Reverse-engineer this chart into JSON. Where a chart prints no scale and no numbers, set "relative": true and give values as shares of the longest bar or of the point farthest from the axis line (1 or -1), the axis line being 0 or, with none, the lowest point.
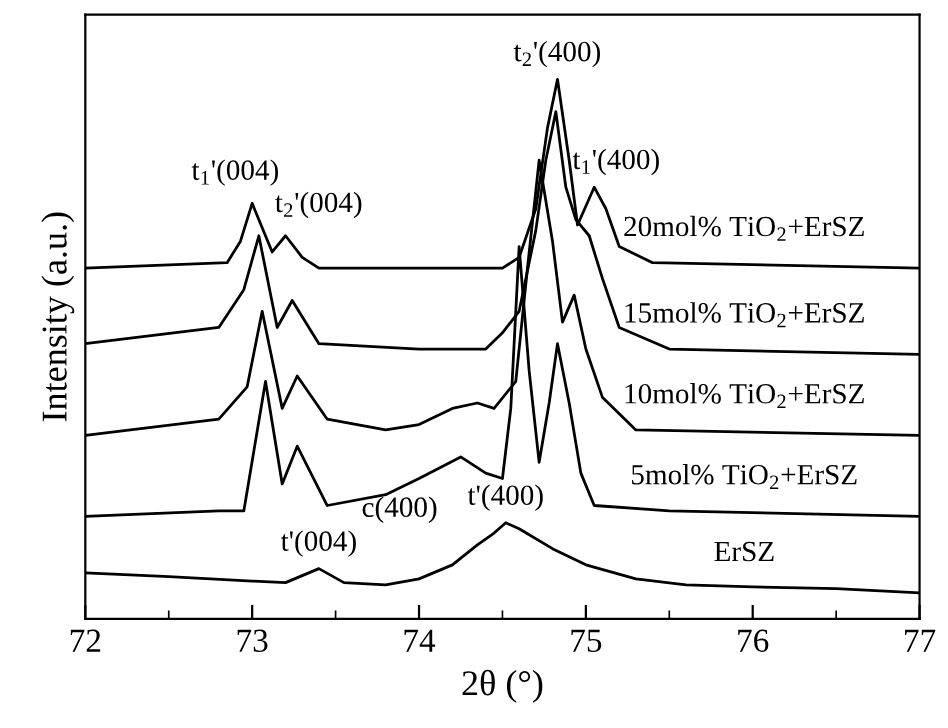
{
  "chart_data": {
    "type": "line",
    "relative": true,
    "xlabel": "2θ (°)",
    "ylabel": "Intensity (a.u.)",
    "xlim": [
      72,
      77
    ],
    "xticks": [
      72,
      73,
      74,
      75,
      76,
      77
    ],
    "grid": false,
    "legend": false,
    "marker": "none",
    "line_style": "solid",
    "series": [
      {
        "name": "ErSZ",
        "color": "#000000",
        "x": [
          72,
          72.5,
          73,
          73.2,
          73.4,
          73.55,
          73.8,
          74.0,
          74.2,
          74.35,
          74.45,
          74.52,
          74.6,
          74.8,
          75.0,
          75.3,
          75.6,
          76,
          76.5,
          77
        ],
        "values": [
          0.085,
          0.078,
          0.07,
          0.067,
          0.093,
          0.067,
          0.063,
          0.074,
          0.1,
          0.137,
          0.159,
          0.178,
          0.167,
          0.13,
          0.1,
          0.074,
          0.063,
          0.059,
          0.056,
          0.048
        ]
      },
      {
        "name": "5mol% TiO$_{2}$+ErSZ",
        "color": "#000000",
        "x": [
          72,
          72.8,
          72.95,
          73.08,
          73.18,
          73.27,
          73.45,
          73.8,
          74.0,
          74.25,
          74.4,
          74.5,
          74.55,
          74.6,
          74.66,
          74.72,
          74.78,
          74.83,
          74.9,
          74.97,
          75.05,
          75.5,
          77
        ],
        "values": [
          0.19,
          0.2,
          0.2,
          0.44,
          0.25,
          0.32,
          0.21,
          0.23,
          0.26,
          0.3,
          0.27,
          0.26,
          0.39,
          0.69,
          0.46,
          0.29,
          0.4,
          0.51,
          0.4,
          0.27,
          0.21,
          0.2,
          0.19
        ]
      },
      {
        "name": "10mol% TiO$_{2}$+ErSZ",
        "color": "#000000",
        "x": [
          72,
          72.8,
          72.97,
          73.06,
          73.18,
          73.27,
          73.45,
          73.8,
          74.0,
          74.2,
          74.35,
          74.45,
          74.58,
          74.65,
          74.72,
          74.8,
          74.86,
          74.93,
          75.0,
          75.1,
          75.3,
          77
        ],
        "values": [
          0.34,
          0.37,
          0.43,
          0.57,
          0.39,
          0.45,
          0.37,
          0.35,
          0.36,
          0.39,
          0.4,
          0.39,
          0.44,
          0.65,
          0.85,
          0.7,
          0.55,
          0.6,
          0.5,
          0.41,
          0.35,
          0.34
        ]
      },
      {
        "name": "15mol% TiO$_{2}$+ErSZ",
        "color": "#000000",
        "x": [
          72,
          72.8,
          72.95,
          73.04,
          73.15,
          73.24,
          73.4,
          74.0,
          74.4,
          74.5,
          74.6,
          74.7,
          74.76,
          74.82,
          74.88,
          74.94,
          75.02,
          75.1,
          75.2,
          75.5,
          77
        ],
        "values": [
          0.51,
          0.54,
          0.61,
          0.71,
          0.54,
          0.59,
          0.51,
          0.5,
          0.5,
          0.53,
          0.57,
          0.72,
          0.85,
          0.94,
          0.8,
          0.74,
          0.71,
          0.63,
          0.54,
          0.5,
          0.49
        ]
      },
      {
        "name": "20mol% TiO$_{2}$+ErSZ",
        "color": "#000000",
        "x": [
          72,
          72.85,
          72.93,
          73.0,
          73.12,
          73.2,
          73.3,
          73.4,
          74.0,
          74.5,
          74.6,
          74.7,
          74.77,
          74.83,
          74.9,
          74.95,
          75.05,
          75.12,
          75.2,
          75.4,
          77
        ],
        "values": [
          0.65,
          0.66,
          0.7,
          0.77,
          0.68,
          0.71,
          0.67,
          0.65,
          0.65,
          0.65,
          0.67,
          0.76,
          0.91,
          1.0,
          0.85,
          0.73,
          0.8,
          0.76,
          0.69,
          0.66,
          0.65
        ]
      }
    ],
    "annotations": [
      {
        "text": "t$_{1}$'(004)",
        "x": 73.0,
        "y": 0.77
      },
      {
        "text": "t$_{2}$'(004)",
        "x": 73.2,
        "y": 0.71
      },
      {
        "text": "t$_{2}$'(400)",
        "x": 74.83,
        "y": 1.0
      },
      {
        "text": "t$_{1}$'(400)",
        "x": 75.05,
        "y": 0.8
      },
      {
        "text": "c(400)",
        "x": 74.25,
        "y": 0.3
      },
      {
        "text": "t'(400)",
        "x": 74.52,
        "y": 0.178
      },
      {
        "text": "t'(004)",
        "x": 73.4,
        "y": 0.093
      }
    ]
  }
}
